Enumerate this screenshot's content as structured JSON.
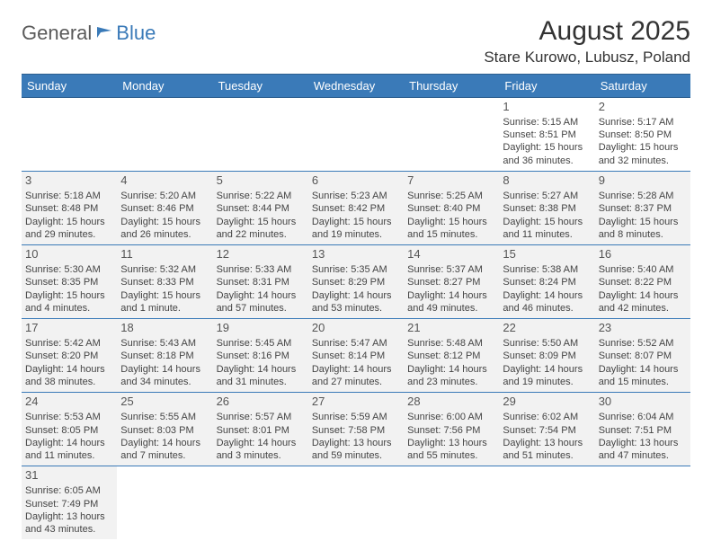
{
  "logo": {
    "general": "General",
    "blue": "Blue"
  },
  "title": "August 2025",
  "location": "Stare Kurowo, Lubusz, Poland",
  "colors": {
    "header_bg": "#3a7ab8",
    "header_border": "#2d5f8f",
    "row_border": "#3a7ab8",
    "shade_bg": "#f2f2f2",
    "text": "#444"
  },
  "day_headers": [
    "Sunday",
    "Monday",
    "Tuesday",
    "Wednesday",
    "Thursday",
    "Friday",
    "Saturday"
  ],
  "weeks": [
    [
      {
        "empty": true
      },
      {
        "empty": true
      },
      {
        "empty": true
      },
      {
        "empty": true
      },
      {
        "empty": true
      },
      {
        "num": "1",
        "sunrise": "Sunrise: 5:15 AM",
        "sunset": "Sunset: 8:51 PM",
        "daylight1": "Daylight: 15 hours",
        "daylight2": "and 36 minutes."
      },
      {
        "num": "2",
        "sunrise": "Sunrise: 5:17 AM",
        "sunset": "Sunset: 8:50 PM",
        "daylight1": "Daylight: 15 hours",
        "daylight2": "and 32 minutes."
      }
    ],
    [
      {
        "num": "3",
        "shade": true,
        "sunrise": "Sunrise: 5:18 AM",
        "sunset": "Sunset: 8:48 PM",
        "daylight1": "Daylight: 15 hours",
        "daylight2": "and 29 minutes."
      },
      {
        "num": "4",
        "shade": true,
        "sunrise": "Sunrise: 5:20 AM",
        "sunset": "Sunset: 8:46 PM",
        "daylight1": "Daylight: 15 hours",
        "daylight2": "and 26 minutes."
      },
      {
        "num": "5",
        "shade": true,
        "sunrise": "Sunrise: 5:22 AM",
        "sunset": "Sunset: 8:44 PM",
        "daylight1": "Daylight: 15 hours",
        "daylight2": "and 22 minutes."
      },
      {
        "num": "6",
        "shade": true,
        "sunrise": "Sunrise: 5:23 AM",
        "sunset": "Sunset: 8:42 PM",
        "daylight1": "Daylight: 15 hours",
        "daylight2": "and 19 minutes."
      },
      {
        "num": "7",
        "shade": true,
        "sunrise": "Sunrise: 5:25 AM",
        "sunset": "Sunset: 8:40 PM",
        "daylight1": "Daylight: 15 hours",
        "daylight2": "and 15 minutes."
      },
      {
        "num": "8",
        "shade": true,
        "sunrise": "Sunrise: 5:27 AM",
        "sunset": "Sunset: 8:38 PM",
        "daylight1": "Daylight: 15 hours",
        "daylight2": "and 11 minutes."
      },
      {
        "num": "9",
        "shade": true,
        "sunrise": "Sunrise: 5:28 AM",
        "sunset": "Sunset: 8:37 PM",
        "daylight1": "Daylight: 15 hours",
        "daylight2": "and 8 minutes."
      }
    ],
    [
      {
        "num": "10",
        "shade": true,
        "sunrise": "Sunrise: 5:30 AM",
        "sunset": "Sunset: 8:35 PM",
        "daylight1": "Daylight: 15 hours",
        "daylight2": "and 4 minutes."
      },
      {
        "num": "11",
        "shade": true,
        "sunrise": "Sunrise: 5:32 AM",
        "sunset": "Sunset: 8:33 PM",
        "daylight1": "Daylight: 15 hours",
        "daylight2": "and 1 minute."
      },
      {
        "num": "12",
        "shade": true,
        "sunrise": "Sunrise: 5:33 AM",
        "sunset": "Sunset: 8:31 PM",
        "daylight1": "Daylight: 14 hours",
        "daylight2": "and 57 minutes."
      },
      {
        "num": "13",
        "shade": true,
        "sunrise": "Sunrise: 5:35 AM",
        "sunset": "Sunset: 8:29 PM",
        "daylight1": "Daylight: 14 hours",
        "daylight2": "and 53 minutes."
      },
      {
        "num": "14",
        "shade": true,
        "sunrise": "Sunrise: 5:37 AM",
        "sunset": "Sunset: 8:27 PM",
        "daylight1": "Daylight: 14 hours",
        "daylight2": "and 49 minutes."
      },
      {
        "num": "15",
        "shade": true,
        "sunrise": "Sunrise: 5:38 AM",
        "sunset": "Sunset: 8:24 PM",
        "daylight1": "Daylight: 14 hours",
        "daylight2": "and 46 minutes."
      },
      {
        "num": "16",
        "shade": true,
        "sunrise": "Sunrise: 5:40 AM",
        "sunset": "Sunset: 8:22 PM",
        "daylight1": "Daylight: 14 hours",
        "daylight2": "and 42 minutes."
      }
    ],
    [
      {
        "num": "17",
        "shade": true,
        "sunrise": "Sunrise: 5:42 AM",
        "sunset": "Sunset: 8:20 PM",
        "daylight1": "Daylight: 14 hours",
        "daylight2": "and 38 minutes."
      },
      {
        "num": "18",
        "shade": true,
        "sunrise": "Sunrise: 5:43 AM",
        "sunset": "Sunset: 8:18 PM",
        "daylight1": "Daylight: 14 hours",
        "daylight2": "and 34 minutes."
      },
      {
        "num": "19",
        "shade": true,
        "sunrise": "Sunrise: 5:45 AM",
        "sunset": "Sunset: 8:16 PM",
        "daylight1": "Daylight: 14 hours",
        "daylight2": "and 31 minutes."
      },
      {
        "num": "20",
        "shade": true,
        "sunrise": "Sunrise: 5:47 AM",
        "sunset": "Sunset: 8:14 PM",
        "daylight1": "Daylight: 14 hours",
        "daylight2": "and 27 minutes."
      },
      {
        "num": "21",
        "shade": true,
        "sunrise": "Sunrise: 5:48 AM",
        "sunset": "Sunset: 8:12 PM",
        "daylight1": "Daylight: 14 hours",
        "daylight2": "and 23 minutes."
      },
      {
        "num": "22",
        "shade": true,
        "sunrise": "Sunrise: 5:50 AM",
        "sunset": "Sunset: 8:09 PM",
        "daylight1": "Daylight: 14 hours",
        "daylight2": "and 19 minutes."
      },
      {
        "num": "23",
        "shade": true,
        "sunrise": "Sunrise: 5:52 AM",
        "sunset": "Sunset: 8:07 PM",
        "daylight1": "Daylight: 14 hours",
        "daylight2": "and 15 minutes."
      }
    ],
    [
      {
        "num": "24",
        "shade": true,
        "sunrise": "Sunrise: 5:53 AM",
        "sunset": "Sunset: 8:05 PM",
        "daylight1": "Daylight: 14 hours",
        "daylight2": "and 11 minutes."
      },
      {
        "num": "25",
        "shade": true,
        "sunrise": "Sunrise: 5:55 AM",
        "sunset": "Sunset: 8:03 PM",
        "daylight1": "Daylight: 14 hours",
        "daylight2": "and 7 minutes."
      },
      {
        "num": "26",
        "shade": true,
        "sunrise": "Sunrise: 5:57 AM",
        "sunset": "Sunset: 8:01 PM",
        "daylight1": "Daylight: 14 hours",
        "daylight2": "and 3 minutes."
      },
      {
        "num": "27",
        "shade": true,
        "sunrise": "Sunrise: 5:59 AM",
        "sunset": "Sunset: 7:58 PM",
        "daylight1": "Daylight: 13 hours",
        "daylight2": "and 59 minutes."
      },
      {
        "num": "28",
        "shade": true,
        "sunrise": "Sunrise: 6:00 AM",
        "sunset": "Sunset: 7:56 PM",
        "daylight1": "Daylight: 13 hours",
        "daylight2": "and 55 minutes."
      },
      {
        "num": "29",
        "shade": true,
        "sunrise": "Sunrise: 6:02 AM",
        "sunset": "Sunset: 7:54 PM",
        "daylight1": "Daylight: 13 hours",
        "daylight2": "and 51 minutes."
      },
      {
        "num": "30",
        "shade": true,
        "sunrise": "Sunrise: 6:04 AM",
        "sunset": "Sunset: 7:51 PM",
        "daylight1": "Daylight: 13 hours",
        "daylight2": "and 47 minutes."
      }
    ],
    [
      {
        "num": "31",
        "shade": true,
        "sunrise": "Sunrise: 6:05 AM",
        "sunset": "Sunset: 7:49 PM",
        "daylight1": "Daylight: 13 hours",
        "daylight2": "and 43 minutes."
      },
      {
        "empty": true
      },
      {
        "empty": true
      },
      {
        "empty": true
      },
      {
        "empty": true
      },
      {
        "empty": true
      },
      {
        "empty": true
      }
    ]
  ]
}
